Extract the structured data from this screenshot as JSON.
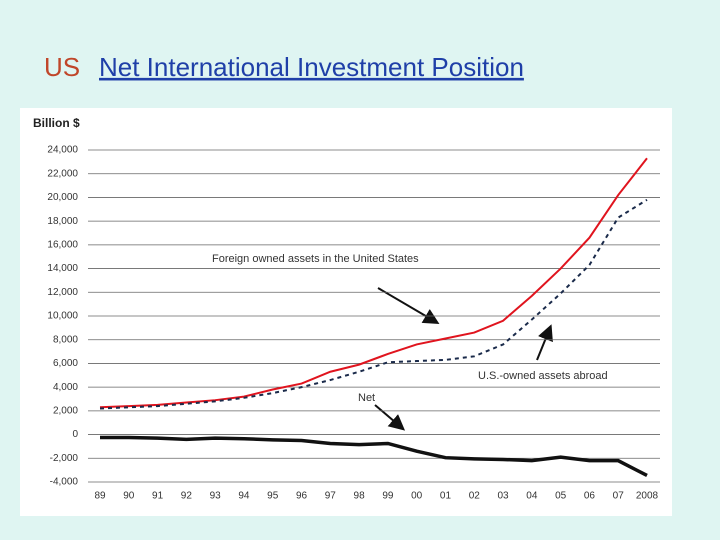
{
  "chart_data": {
    "type": "line",
    "title_prefix": "US",
    "title": "Net International Investment Position",
    "ylabel": "Billion $",
    "categories": [
      "89",
      "90",
      "91",
      "92",
      "93",
      "94",
      "95",
      "96",
      "97",
      "98",
      "99",
      "00",
      "01",
      "02",
      "03",
      "04",
      "05",
      "06",
      "07",
      "2008"
    ],
    "series": [
      {
        "name": "Foreign owned assets in the United States",
        "color": "#e0141e",
        "line_style": "solid",
        "values": [
          2300,
          2400,
          2500,
          2700,
          2900,
          3200,
          3800,
          4300,
          5300,
          5900,
          6800,
          7600,
          8100,
          8600,
          9600,
          11700,
          14000,
          16600,
          20200,
          23300
        ]
      },
      {
        "name": "U.S.-owned assets abroad",
        "color": "#1a2a4a",
        "line_style": "dashed",
        "values": [
          2200,
          2300,
          2400,
          2600,
          2800,
          3100,
          3500,
          4000,
          4600,
          5300,
          6100,
          6200,
          6300,
          6600,
          7600,
          9700,
          11900,
          14300,
          18300,
          19800
        ]
      },
      {
        "name": "Net",
        "color": "#111111",
        "line_style": "solid",
        "values": [
          -250,
          -250,
          -300,
          -400,
          -300,
          -350,
          -450,
          -500,
          -750,
          -850,
          -750,
          -1400,
          -1950,
          -2050,
          -2100,
          -2200,
          -1900,
          -2200,
          -2200,
          -3450
        ]
      }
    ],
    "ylim": [
      -4000,
      24000
    ],
    "yticks": [
      {
        "value": 24000,
        "label": "24,000"
      },
      {
        "value": 22000,
        "label": "22,000"
      },
      {
        "value": 20000,
        "label": "20,000"
      },
      {
        "value": 18000,
        "label": "18,000"
      },
      {
        "value": 16000,
        "label": "16,000"
      },
      {
        "value": 14000,
        "label": "14,000"
      },
      {
        "value": 12000,
        "label": "12,000"
      },
      {
        "value": 10000,
        "label": "10,000"
      },
      {
        "value": 8000,
        "label": "8,000"
      },
      {
        "value": 6000,
        "label": "6,000"
      },
      {
        "value": 4000,
        "label": "4,000"
      },
      {
        "value": 2000,
        "label": "2,000"
      },
      0,
      {
        "value": -2000,
        "label": "-2,000"
      },
      {
        "value": -4000,
        "label": "-4,000"
      }
    ],
    "grid": true
  }
}
